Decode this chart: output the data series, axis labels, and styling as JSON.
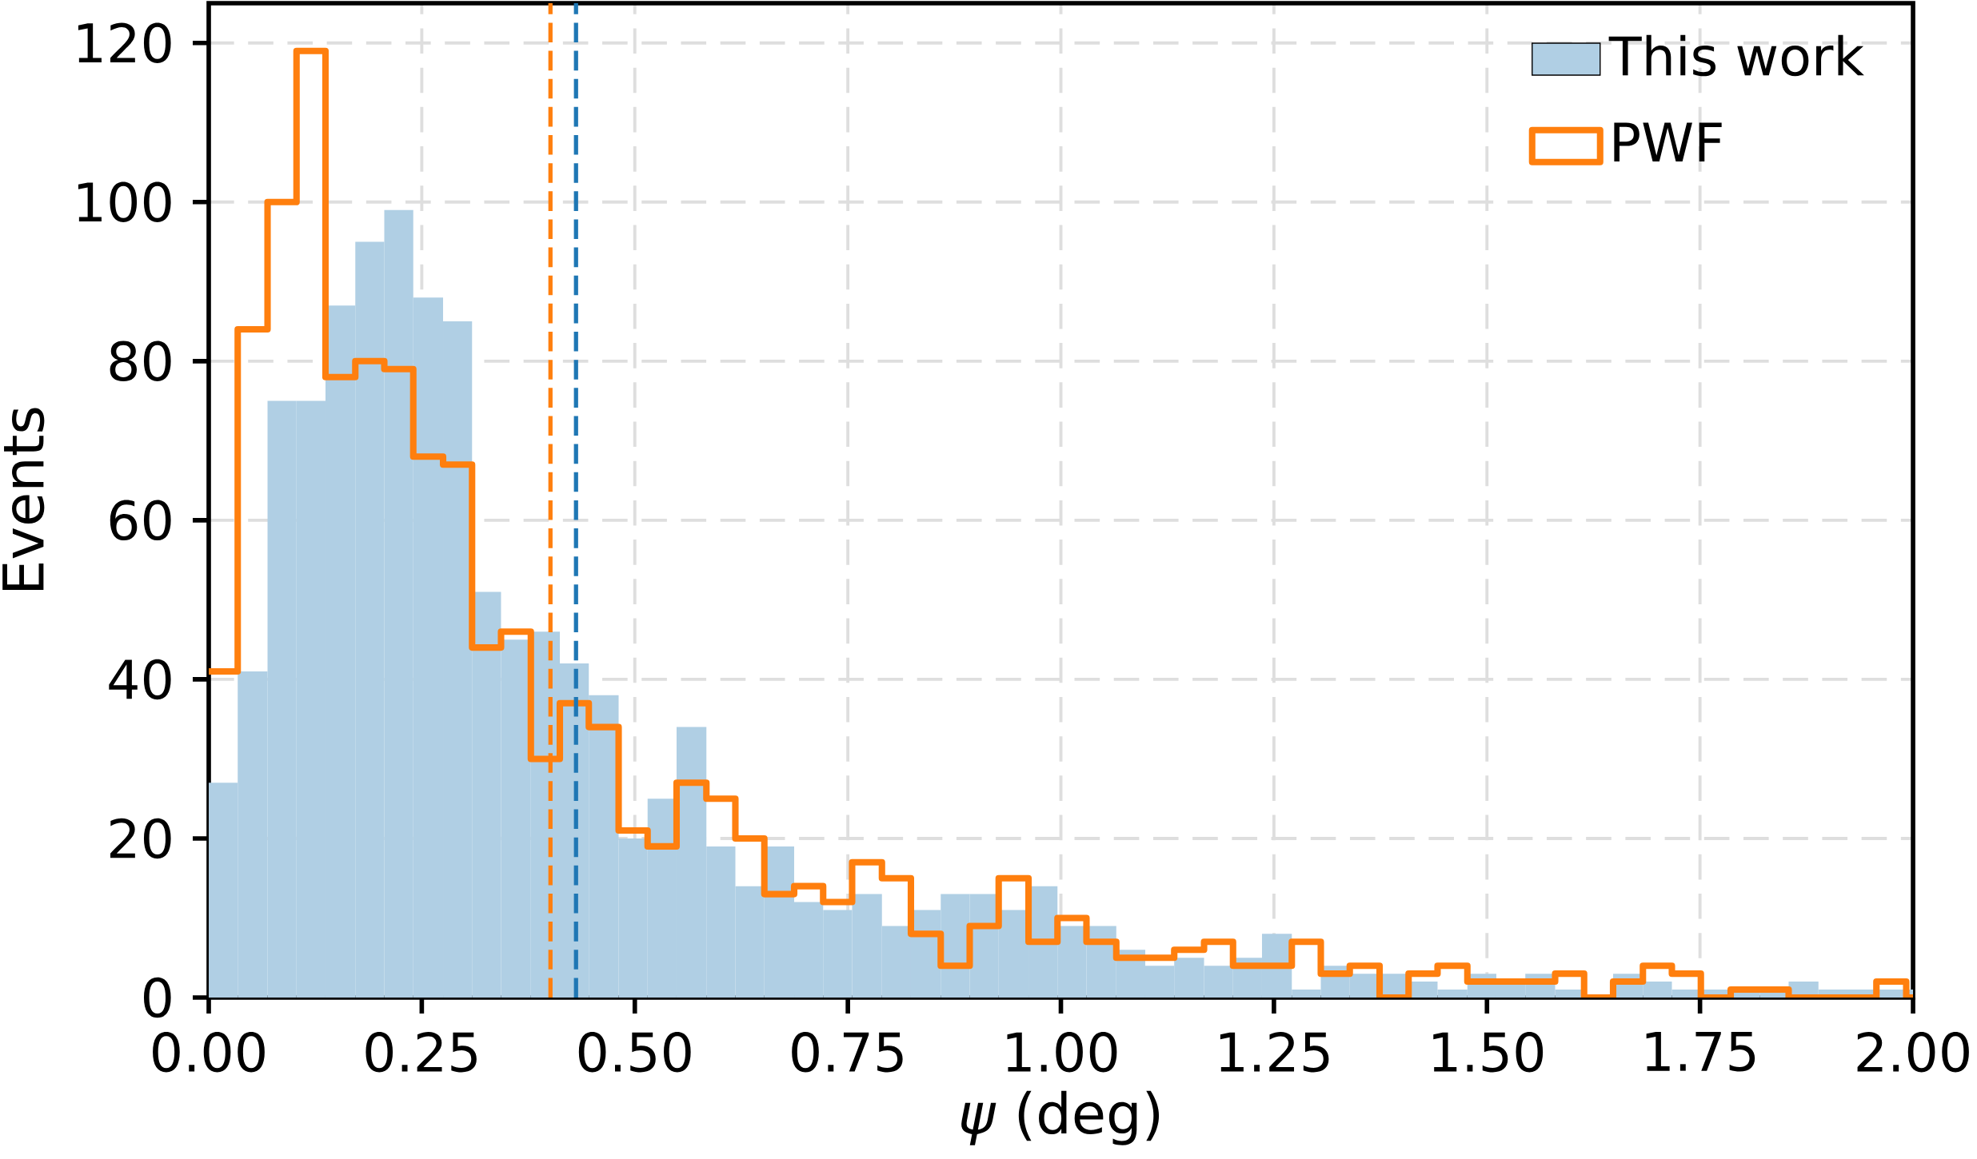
{
  "chart_data": {
    "type": "histogram",
    "xlabel": "*ψ* (deg)",
    "ylabel": "Events",
    "bins": [
      0,
      0.034,
      0.069,
      0.103,
      0.137,
      0.172,
      0.206,
      0.24,
      0.275,
      0.309,
      0.343,
      0.378,
      0.412,
      0.446,
      0.481,
      0.515,
      0.549,
      0.584,
      0.618,
      0.652,
      0.687,
      0.721,
      0.755,
      0.79,
      0.824,
      0.859,
      0.893,
      0.927,
      0.962,
      0.996,
      1.03,
      1.065,
      1.099,
      1.133,
      1.168,
      1.202,
      1.236,
      1.271,
      1.305,
      1.339,
      1.374,
      1.408,
      1.442,
      1.477,
      1.511,
      1.545,
      1.58,
      1.614,
      1.648,
      1.683,
      1.717,
      1.751,
      1.786,
      1.82,
      1.854,
      1.889,
      1.923,
      1.957,
      1.992,
      2.0
    ],
    "series": [
      {
        "name": "This work",
        "color": "#b0cfe4",
        "values": [
          27,
          41,
          75,
          75,
          87,
          95,
          99,
          88,
          85,
          51,
          45,
          46,
          42,
          38,
          20,
          25,
          34,
          19,
          14,
          19,
          12,
          11,
          13,
          9,
          11,
          13,
          13,
          11,
          14,
          9,
          9,
          6,
          4,
          5,
          4,
          5,
          8,
          1,
          4,
          3,
          3,
          2,
          1,
          3,
          2,
          3,
          1,
          0,
          3,
          2,
          1,
          1,
          1,
          1,
          2,
          1,
          1,
          1,
          1
        ]
      },
      {
        "name": "PWF",
        "type": "step",
        "color": "#ff7f0e",
        "x": [
          0,
          0.034,
          0.069,
          0.103,
          0.137,
          0.172,
          0.206,
          0.24,
          0.275,
          0.309,
          0.343,
          0.378,
          0.412,
          0.446,
          0.481,
          0.515,
          0.549,
          0.584,
          0.618,
          0.652,
          0.687,
          0.721,
          0.755,
          0.79,
          0.824,
          0.859,
          0.893,
          0.927,
          0.962,
          0.996,
          1.03,
          1.065,
          1.099,
          1.133,
          1.168,
          1.202,
          1.236,
          1.271,
          1.305,
          1.339,
          1.374,
          1.408,
          1.442,
          1.477,
          1.511,
          1.545,
          1.58,
          1.614,
          1.648,
          1.683,
          1.717,
          1.751,
          1.786,
          1.82,
          1.854,
          1.889,
          1.923,
          1.957,
          1.992
        ],
        "values": [
          41,
          84,
          100,
          119,
          78,
          80,
          79,
          68,
          67,
          44,
          46,
          30,
          37,
          34,
          21,
          19,
          27,
          25,
          20,
          13,
          14,
          12,
          17,
          15,
          8,
          4,
          9,
          15,
          7,
          10,
          7,
          5,
          5,
          6,
          7,
          4,
          4,
          7,
          3,
          4,
          0,
          3,
          4,
          2,
          2,
          2,
          3,
          0,
          2,
          4,
          3,
          0,
          1,
          1,
          0,
          0,
          0,
          2,
          0
        ]
      }
    ],
    "ref_lines": [
      {
        "axis": "x",
        "value": 0.401,
        "color": "#ff7f0e",
        "line_style": "dashed"
      },
      {
        "axis": "x",
        "value": 0.431,
        "color": "#1f77b4",
        "line_style": "dashed"
      }
    ],
    "xlim": [
      0,
      2.0
    ],
    "ylim": [
      0,
      125
    ],
    "xticks": [
      {
        "value": 0,
        "label": "0.00"
      },
      {
        "value": 0.25,
        "label": "0.25"
      },
      {
        "value": 0.5,
        "label": "0.50"
      },
      {
        "value": 0.75,
        "label": "0.75"
      },
      {
        "value": 1.0,
        "label": "1.00"
      },
      {
        "value": 1.25,
        "label": "1.25"
      },
      {
        "value": 1.5,
        "label": "1.50"
      },
      {
        "value": 1.75,
        "label": "1.75"
      },
      {
        "value": 2.0,
        "label": "2.00"
      }
    ],
    "yticks": [
      0,
      20,
      40,
      60,
      80,
      100,
      120
    ],
    "grid": true,
    "legend": "top right"
  }
}
